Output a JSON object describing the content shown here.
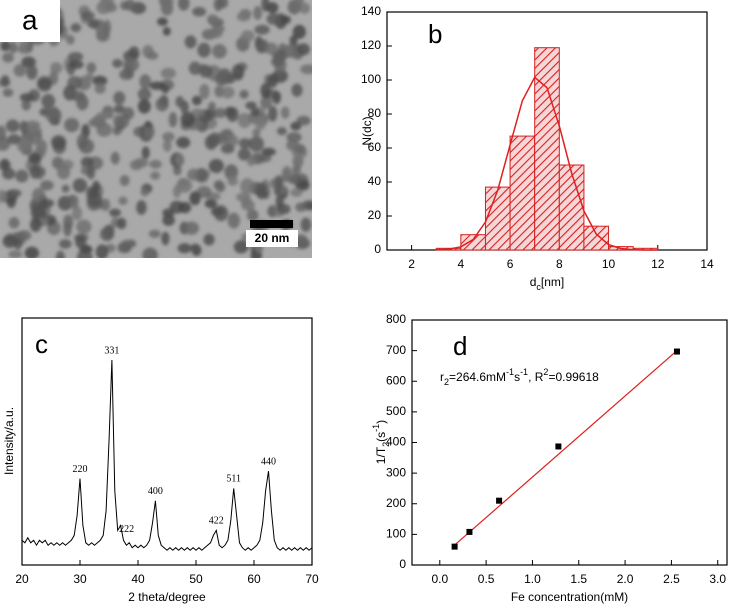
{
  "chart_data": [
    {
      "type": "image",
      "label": "a",
      "scale_bar": "20 nm"
    },
    {
      "type": "histogram",
      "label": "b",
      "color": "#d42020",
      "bins": [
        3,
        4,
        5,
        6,
        7,
        8,
        9,
        10,
        11,
        12
      ],
      "counts": [
        1,
        9,
        37,
        67,
        119,
        50,
        14,
        2,
        1
      ],
      "fit": {
        "color": "#e02020",
        "x": [
          3,
          3.5,
          4,
          4.5,
          5,
          5.5,
          6,
          6.5,
          7,
          7.5,
          8,
          8.5,
          9,
          9.5,
          10,
          10.5,
          11,
          11.5,
          12
        ],
        "values": [
          0.1,
          0.5,
          1.9,
          6.2,
          16.5,
          35.3,
          61.9,
          87.9,
          101.6,
          95.5,
          73,
          45.3,
          23,
          9.4,
          3.2,
          0.9,
          0.2,
          0,
          0
        ]
      },
      "x_label": [
        {
          "text": "d"
        },
        {
          "text": "c",
          "pos": "sub"
        },
        {
          "text": "[nm]"
        }
      ],
      "y_label": "N(dc)",
      "xlim": [
        1,
        14
      ],
      "xticks": [
        2,
        4,
        6,
        8,
        10,
        12,
        14
      ],
      "ylim": [
        0,
        140
      ],
      "yticks": [
        0,
        20,
        40,
        60,
        80,
        100,
        120,
        140
      ]
    },
    {
      "type": "line",
      "label": "c",
      "color": "#000000",
      "x": [
        20,
        20.5,
        21,
        21.5,
        22,
        22.5,
        23,
        23.5,
        24,
        24.5,
        25,
        25.5,
        26,
        26.5,
        27,
        27.5,
        28,
        28.5,
        29,
        29.5,
        30,
        30.5,
        31,
        31.5,
        32,
        32.5,
        33,
        33.5,
        34,
        34.5,
        35,
        35.5,
        36,
        36.5,
        37,
        37.5,
        38,
        38.5,
        39,
        39.5,
        40,
        40.5,
        41,
        41.5,
        42,
        42.5,
        43,
        43.5,
        44,
        44.5,
        45,
        45.5,
        46,
        46.5,
        47,
        47.5,
        48,
        48.5,
        49,
        49.5,
        50,
        50.5,
        51,
        51.5,
        52,
        52.5,
        53,
        53.5,
        54,
        54.5,
        55,
        55.5,
        56,
        56.5,
        57,
        57.5,
        58,
        58.5,
        59,
        59.5,
        60,
        60.5,
        61,
        61.5,
        62,
        62.5,
        63,
        63.5,
        64,
        64.5,
        65,
        65.5,
        66,
        66.5,
        67,
        67.5,
        68,
        68.5,
        69,
        69.5,
        70
      ],
      "values": [
        10,
        9,
        11,
        9,
        10,
        8,
        10,
        9,
        10,
        8,
        9,
        8,
        9,
        8,
        9,
        8,
        9,
        10,
        12,
        20,
        35,
        16,
        9,
        8,
        9,
        8,
        9,
        10,
        12,
        22,
        50,
        83,
        30,
        14,
        16,
        10,
        8,
        9,
        7,
        8,
        7,
        8,
        7,
        8,
        10,
        17,
        26,
        12,
        8,
        7,
        6,
        7,
        6,
        7,
        6,
        7,
        6,
        7,
        6,
        7,
        6,
        7,
        6,
        7,
        8,
        9,
        12,
        14,
        8,
        7,
        8,
        10,
        18,
        31,
        20,
        9,
        7,
        6,
        7,
        6,
        7,
        8,
        10,
        17,
        30,
        38,
        22,
        10,
        7,
        6,
        7,
        6,
        7,
        6,
        7,
        6,
        7,
        6,
        7,
        6,
        7
      ],
      "annotations": [
        {
          "text": "220",
          "x": 30
        },
        {
          "text": "331",
          "x": 35.5
        },
        {
          "text": "222",
          "x": 37
        },
        {
          "text": "400",
          "x": 43
        },
        {
          "text": "422",
          "x": 53.5
        },
        {
          "text": "511",
          "x": 56.5
        },
        {
          "text": "440",
          "x": 62.5
        }
      ],
      "x_label": "2 theta/degree",
      "y_label": "Intensity/a.u.",
      "xlim": [
        20,
        70
      ],
      "xticks": [
        20,
        30,
        40,
        50,
        60,
        70
      ],
      "ylim": [
        0,
        100
      ]
    },
    {
      "type": "scatter",
      "label": "d",
      "series": [
        {
          "color": "#000000",
          "x": [
            0.16,
            0.32,
            0.64,
            1.28,
            2.56
          ],
          "values": [
            60,
            108,
            210,
            387,
            697
          ]
        }
      ],
      "fit": {
        "color": "#e02020",
        "x": [
          0.16,
          2.56
        ],
        "values": [
          65,
          700
        ]
      },
      "annotation": [
        {
          "text": "r"
        },
        {
          "text": "2",
          "pos": "sub"
        },
        {
          "text": "=264.6mM"
        },
        {
          "text": "-1",
          "pos": "sup"
        },
        {
          "text": "s"
        },
        {
          "text": "-1",
          "pos": "sup"
        },
        {
          "text": ", R"
        },
        {
          "text": "2",
          "pos": "sup"
        },
        {
          "text": "=0.99618"
        }
      ],
      "x_label": "Fe concentration(mM)",
      "y_label": [
        {
          "text": "1/T"
        },
        {
          "text": "2",
          "pos": "sub"
        },
        {
          "text": "(s"
        },
        {
          "text": "-1",
          "pos": "sup"
        },
        {
          "text": ")"
        }
      ],
      "xlim": [
        -0.3,
        3.1
      ],
      "xticks": [
        {
          "value": 0,
          "label": "0.0"
        },
        {
          "value": 0.5,
          "label": "0.5"
        },
        {
          "value": 1,
          "label": "1.0"
        },
        {
          "value": 1.5,
          "label": "1.5"
        },
        {
          "value": 2,
          "label": "2.0"
        },
        {
          "value": 2.5,
          "label": "2.5"
        },
        {
          "value": 3,
          "label": "3.0"
        }
      ],
      "ylim": [
        0,
        800
      ],
      "yticks": [
        0,
        100,
        200,
        300,
        400,
        500,
        600,
        700,
        800
      ]
    }
  ]
}
